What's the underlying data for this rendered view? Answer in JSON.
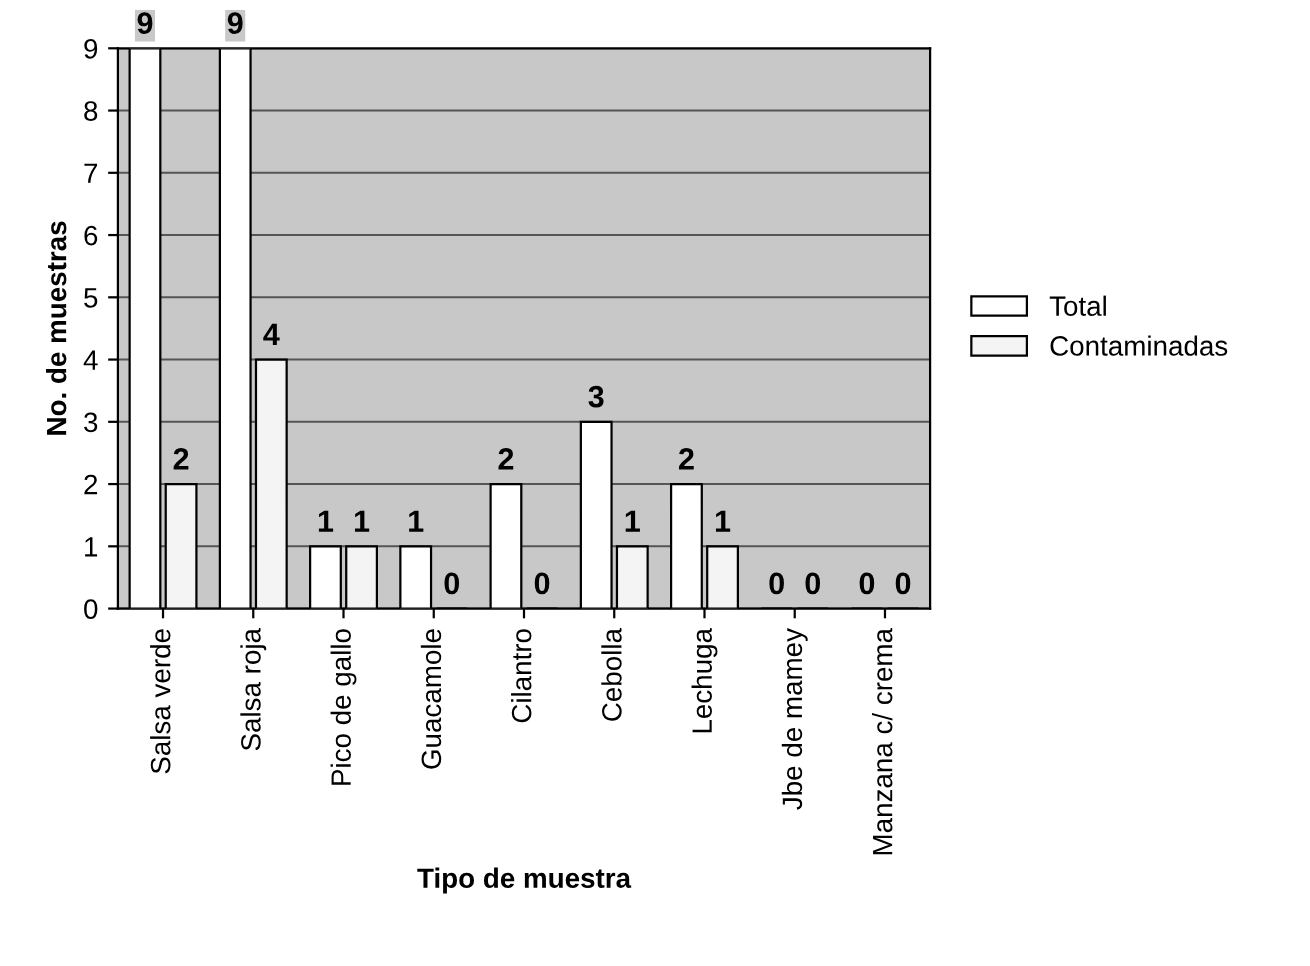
{
  "chart_data": {
    "type": "bar",
    "xlabel": "Tipo de muestra",
    "ylabel": "No. de muestras",
    "categories": [
      "Salsa verde",
      "Salsa roja",
      "Pico de gallo",
      "Guacamole",
      "Cilantro",
      "Cebolla",
      "Lechuga",
      "Jbe de mamey",
      "Manzana c/ crema"
    ],
    "series": [
      {
        "name": "Total",
        "color": "#ffffff",
        "values": [
          9,
          9,
          1,
          1,
          2,
          3,
          2,
          0,
          0
        ]
      },
      {
        "name": "Contaminadas",
        "color": "#f4f4f4",
        "values": [
          2,
          4,
          1,
          0,
          0,
          1,
          1,
          0,
          0
        ]
      }
    ],
    "ylim": [
      0,
      9
    ],
    "yticks": [
      0,
      1,
      2,
      3,
      4,
      5,
      6,
      7,
      8,
      9
    ],
    "grid": "y",
    "legend": "right",
    "data_labels": true
  }
}
